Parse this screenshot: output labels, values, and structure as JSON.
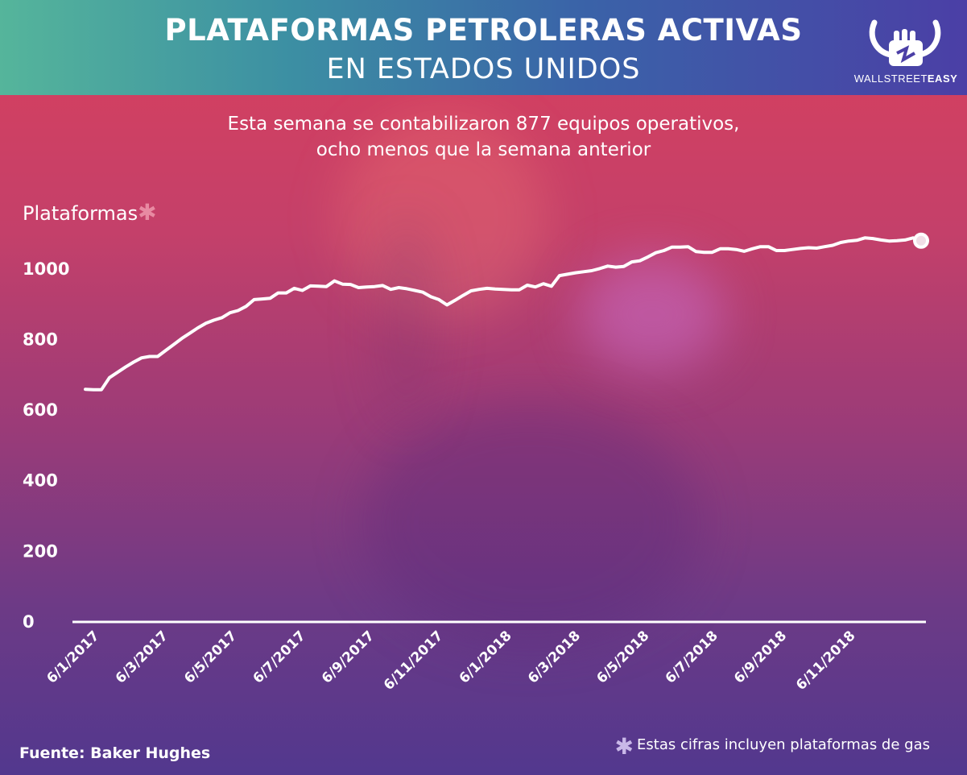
{
  "header": {
    "title_line1": "PLATAFORMAS PETROLERAS ACTIVAS",
    "title_line2": "EN ESTADOS UNIDOS",
    "brand_light": "WALLSTREET",
    "brand_bold": "EASY",
    "logo_icon": "bull-fist-icon"
  },
  "subtitle": {
    "line1": "Esta semana se contabilizaron 877 equipos operativos,",
    "line2": "ocho menos que la semana anterior"
  },
  "footer": {
    "source": "Fuente: Baker Hughes",
    "note": "Estas cifras incluyen plataformas de gas",
    "asterisk": "✱"
  },
  "colors": {
    "line": "#ffffff",
    "header_start": "#55b59b",
    "header_end": "#4b3fa6",
    "asterisk_pink": "#e88aa2"
  },
  "chart_data": {
    "type": "line",
    "title": "Plataformas petroleras activas en Estados Unidos",
    "ylabel": "Plataformas",
    "ylabel_mark": "✱",
    "ylim": [
      0,
      1100
    ],
    "yticks": [
      0,
      200,
      400,
      600,
      800,
      1000
    ],
    "xtick_labels": [
      "6/1/2017",
      "6/3/2017",
      "6/5/2017",
      "6/7/2017",
      "6/9/2017",
      "6/11/2017",
      "6/1/2018",
      "6/3/2018",
      "6/5/2018",
      "6/7/2018",
      "6/9/2018",
      "6/11/2018"
    ],
    "series": [
      {
        "name": "Plataformas",
        "values": [
          659,
          658,
          658,
          692,
          707,
          722,
          736,
          748,
          752,
          752,
          769,
          786,
          803,
          818,
          833,
          846,
          855,
          862,
          876,
          882,
          894,
          913,
          915,
          917,
          932,
          932,
          945,
          939,
          952,
          951,
          950,
          966,
          957,
          956,
          947,
          949,
          950,
          953,
          942,
          947,
          944,
          939,
          934,
          921,
          913,
          898,
          911,
          925,
          938,
          942,
          945,
          943,
          942,
          941,
          941,
          954,
          949,
          958,
          951,
          981,
          985,
          989,
          992,
          995,
          1001,
          1008,
          1005,
          1007,
          1020,
          1023,
          1034,
          1046,
          1052,
          1062,
          1062,
          1063,
          1049,
          1047,
          1047,
          1057,
          1057,
          1055,
          1050,
          1057,
          1063,
          1063,
          1052,
          1052,
          1055,
          1058,
          1060,
          1059,
          1063,
          1067,
          1075,
          1079,
          1081,
          1088,
          1086,
          1082,
          1079,
          1080,
          1082,
          1088,
          1080
        ]
      }
    ]
  }
}
